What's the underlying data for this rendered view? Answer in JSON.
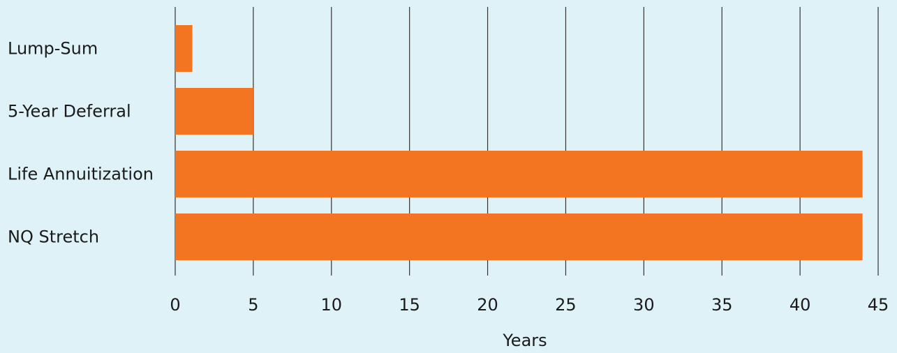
{
  "chart_data": {
    "type": "bar",
    "orientation": "horizontal",
    "categories": [
      "Lump-Sum",
      "5-Year Deferral",
      "Life Annuitization",
      "NQ Stretch"
    ],
    "values": [
      1.1,
      5,
      44,
      44
    ],
    "xlabel": "Years",
    "ylabel": "",
    "xlim": [
      0,
      45
    ],
    "xticks": [
      0,
      5,
      10,
      15,
      20,
      25,
      30,
      35,
      40,
      45
    ],
    "grid": "vertical",
    "bar_color": "#f47521",
    "background_color": "#dff2f7",
    "gridline_color": "#333333"
  }
}
